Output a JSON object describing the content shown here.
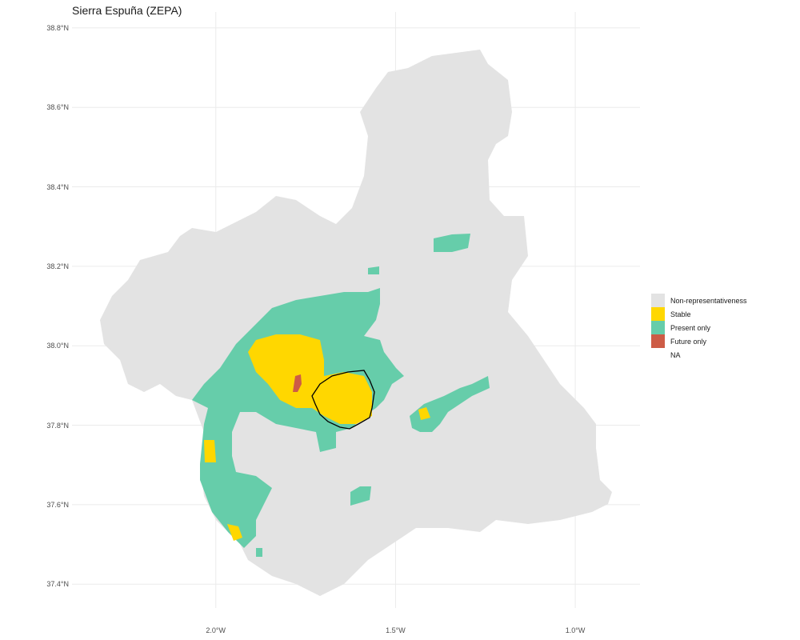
{
  "title": "Sierra Espuña (ZEPA)",
  "chart_data": {
    "type": "map",
    "title": "Sierra Espuña (ZEPA)",
    "y_ticks": [
      "38.8°N",
      "38.6°N",
      "38.4°N",
      "38.2°N",
      "38.0°N",
      "37.8°N",
      "37.6°N",
      "37.4°N"
    ],
    "y_tick_values": [
      38.8,
      38.6,
      38.4,
      38.2,
      38.0,
      37.8,
      37.6,
      37.4
    ],
    "x_ticks": [
      "2.0°W",
      "1.5°W",
      "1.0°W"
    ],
    "x_tick_values": [
      -2.0,
      -1.5,
      -1.0
    ],
    "xlim": [
      -2.4,
      -0.82
    ],
    "ylim": [
      37.34,
      38.84
    ],
    "grid": true,
    "legend_position": "right",
    "legend": [
      {
        "key": "non-representativeness",
        "label": "Non-representativeness",
        "color": "#e3e3e3"
      },
      {
        "key": "stable",
        "label": "Stable",
        "color": "#ffd700"
      },
      {
        "key": "present-only",
        "label": "Present only",
        "color": "#66cdaa"
      },
      {
        "key": "future-only",
        "label": "Future only",
        "color": "#cd5c46"
      },
      {
        "key": "na",
        "label": "NA",
        "color": "#ffffff"
      }
    ]
  }
}
